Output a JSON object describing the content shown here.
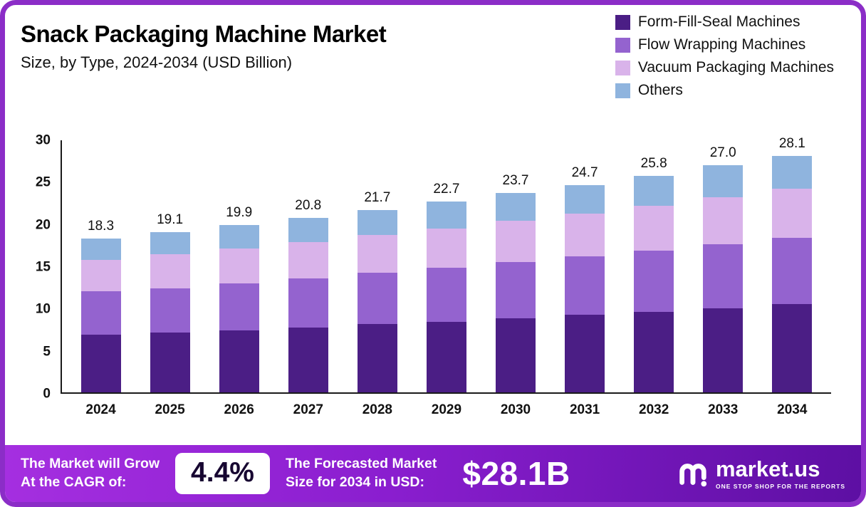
{
  "header": {
    "title": "Snack Packaging Machine Market",
    "subtitle": "Size, by Type, 2024-2034 (USD Billion)"
  },
  "chart_data": {
    "type": "bar",
    "stacked": true,
    "title": "Snack Packaging Machine Market Size, by Type, 2024-2034 (USD Billion)",
    "categories": [
      "2024",
      "2025",
      "2026",
      "2027",
      "2028",
      "2029",
      "2030",
      "2031",
      "2032",
      "2033",
      "2034"
    ],
    "series": [
      {
        "name": "Form-Fill-Seal Machines",
        "color": "#4b1e85",
        "values": [
          6.9,
          7.1,
          7.4,
          7.7,
          8.1,
          8.4,
          8.8,
          9.2,
          9.6,
          10.0,
          10.5
        ]
      },
      {
        "name": "Flow Wrapping Machines",
        "color": "#9463cf",
        "values": [
          5.1,
          5.3,
          5.6,
          5.9,
          6.1,
          6.4,
          6.7,
          7.0,
          7.3,
          7.6,
          7.9
        ]
      },
      {
        "name": "Vacuum Packaging Machines",
        "color": "#d9b3ea",
        "values": [
          3.8,
          4.0,
          4.1,
          4.3,
          4.5,
          4.7,
          4.9,
          5.1,
          5.3,
          5.6,
          5.8
        ]
      },
      {
        "name": "Others",
        "color": "#8fb4de",
        "values": [
          2.5,
          2.7,
          2.8,
          2.9,
          3.0,
          3.2,
          3.3,
          3.4,
          3.6,
          3.8,
          3.9
        ]
      }
    ],
    "totals": [
      "18.3",
      "19.1",
      "19.9",
      "20.8",
      "21.7",
      "22.7",
      "23.7",
      "24.7",
      "25.8",
      "27.0",
      "28.1"
    ],
    "y_ticks": [
      0,
      5,
      10,
      15,
      20,
      25,
      30
    ],
    "ylim": [
      0,
      30
    ],
    "xlabel": "",
    "ylabel": "",
    "grid": false,
    "legend_position": "top-right"
  },
  "banner": {
    "cagr_label_line1": "The Market will Grow",
    "cagr_label_line2": "At the CAGR of:",
    "cagr_value": "4.4%",
    "forecast_label_line1": "The Forecasted Market",
    "forecast_label_line2": "Size for 2034 in USD:",
    "forecast_value": "$28.1B",
    "brand_name": "market.us",
    "brand_tagline": "ONE STOP SHOP FOR THE REPORTS",
    "brand_icon": "marketus-wave-icon"
  },
  "colors": {
    "page_border": "#8b2dc7",
    "banner_gradient_start": "#a52fe0",
    "banner_gradient_mid": "#8a1ecf",
    "banner_gradient_end": "#5d0fa3"
  }
}
